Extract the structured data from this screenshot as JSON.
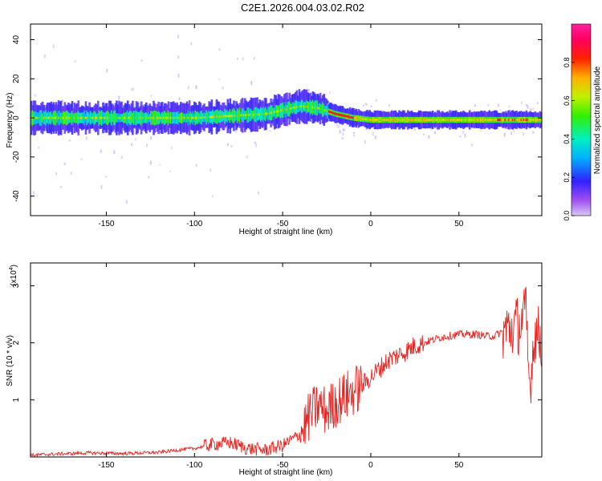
{
  "title": "C2E1.2026.004.03.02.R02",
  "colors": {
    "snr_line": "#e8231f",
    "axis": "#000000",
    "background": "#ffffff"
  },
  "chart_data": [
    {
      "type": "heatmap",
      "xlabel": "Height of straight line (km)",
      "ylabel": "Frequency (Hz)",
      "xlim": [
        -193,
        97
      ],
      "ylim": [
        -50,
        48
      ],
      "xticks": [
        -150,
        -100,
        -50,
        0,
        50
      ],
      "yticks": [
        -40,
        -20,
        0,
        20,
        40
      ],
      "colorbar": {
        "label": "Normalized spectral amplitude",
        "range": [
          0,
          1
        ],
        "ticks": [
          0.0,
          0.2,
          0.4,
          0.6,
          0.8
        ],
        "tick_labels": [
          "0.0",
          "0.2",
          "0.4",
          "0.6",
          "0.8"
        ],
        "colormap": "hsv-rainbow"
      },
      "ridge": {
        "description_points_x": [
          -193,
          -150,
          -100,
          -80,
          -60,
          -50,
          -40,
          -30,
          -20,
          -10,
          0,
          20,
          50,
          70,
          97
        ],
        "description_points_y": [
          0,
          0,
          0,
          1,
          2,
          4,
          6,
          5,
          2,
          0,
          -1,
          -1,
          -1,
          -1,
          -1
        ]
      }
    },
    {
      "type": "line",
      "xlabel": "Height of straight line (km)",
      "ylabel": "SNR (10 * v/v)",
      "y_multiplier_label": "(x10",
      "y_multiplier_exp": "4",
      "y_multiplier_close": ")",
      "xlim": [
        -193,
        97
      ],
      "ylim": [
        0,
        3.4
      ],
      "xticks": [
        -150,
        -100,
        -50,
        0,
        50
      ],
      "yticks": [
        1,
        2,
        3
      ],
      "series": [
        {
          "x": [
            -193,
            -180,
            -160,
            -140,
            -120,
            -110,
            -100,
            -90,
            -80,
            -70,
            -60,
            -50,
            -45,
            -40,
            -35,
            -30,
            -25,
            -20,
            -15,
            -10,
            -5,
            0,
            5,
            10,
            20,
            25,
            30,
            40,
            50,
            60,
            65,
            70,
            75,
            80,
            85,
            88,
            90,
            93,
            97
          ],
          "y": [
            0.03,
            0.05,
            0.07,
            0.06,
            0.08,
            0.12,
            0.15,
            0.22,
            0.25,
            0.15,
            0.12,
            0.2,
            0.3,
            0.4,
            0.7,
            0.9,
            0.8,
            0.95,
            1.05,
            1.15,
            1.25,
            1.4,
            1.55,
            1.7,
            1.85,
            1.95,
            2.0,
            2.1,
            2.15,
            2.15,
            2.12,
            2.12,
            2.2,
            2.25,
            2.35,
            2.5,
            1.2,
            2.2,
            2.05
          ]
        }
      ]
    }
  ]
}
